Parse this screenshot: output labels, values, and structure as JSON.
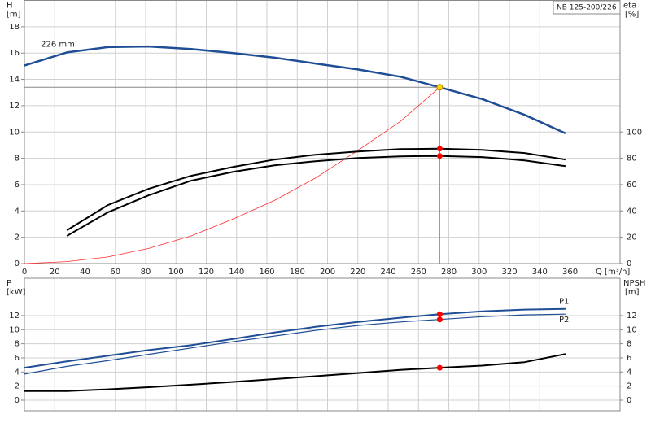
{
  "chart_data": [
    {
      "type": "line",
      "ylabel": "H",
      "yunit": "[m]",
      "y2label": "eta",
      "y2unit": "[%]",
      "xlabel": "Q [m³/h]",
      "label_box": "NB 125-200/226",
      "x": [
        0,
        28,
        55,
        82,
        110,
        138,
        165,
        192,
        220,
        248,
        274,
        302,
        330,
        357
      ],
      "xlim": [
        0,
        393
      ],
      "xticks": [
        0,
        20,
        40,
        60,
        80,
        100,
        120,
        140,
        160,
        180,
        200,
        220,
        240,
        260,
        280,
        300,
        320,
        340,
        360
      ],
      "ylim": [
        0,
        20
      ],
      "yticks": [
        0,
        2,
        4,
        6,
        8,
        10,
        12,
        14,
        16,
        18
      ],
      "y2lim": [
        0,
        200
      ],
      "y2ticks": [
        0,
        20,
        40,
        60,
        80,
        100
      ],
      "grid": true,
      "marker_x": 274,
      "crosshair": true,
      "series": [
        {
          "name": "226 mm",
          "color": "#1f4e96",
          "line_width": 2.5,
          "marker_color": "#ffd700",
          "crosshair": true,
          "values": [
            15.05,
            16.05,
            16.45,
            16.5,
            16.3,
            16.0,
            15.65,
            15.2,
            14.75,
            14.2,
            13.4,
            12.5,
            11.3,
            9.9
          ]
        },
        {
          "color": "#ff2a2a",
          "line_width": 0.8,
          "values": [
            0,
            0.15,
            0.5,
            1.15,
            2.1,
            3.4,
            4.8,
            6.5,
            8.6,
            10.8,
            13.4,
            null,
            null,
            null
          ]
        },
        {
          "color": "#000000",
          "line_width": 2,
          "axis": "y2",
          "marker_color": "#ff0000",
          "values": [
            null,
            25.3,
            44.4,
            56.8,
            66.7,
            73.5,
            79,
            82.7,
            85.2,
            87,
            87.3,
            86.4,
            84,
            79
          ]
        },
        {
          "color": "#000000",
          "line_width": 2,
          "axis": "y2",
          "marker_color": "#ff0000",
          "values": [
            null,
            21,
            38.9,
            51.9,
            63,
            69.8,
            74.7,
            77.8,
            80.2,
            81.5,
            81.8,
            80.9,
            78.4,
            74
          ]
        }
      ]
    },
    {
      "type": "line",
      "ylabel": "P",
      "yunit": "[kW]",
      "y2label": "NPSH",
      "y2unit": "[m]",
      "x": [
        0,
        28,
        55,
        82,
        110,
        138,
        165,
        192,
        220,
        248,
        274,
        302,
        330,
        357
      ],
      "xlim": [
        0,
        393
      ],
      "xticks": [
        0,
        20,
        40,
        60,
        80,
        100,
        120,
        140,
        160,
        180,
        200,
        220,
        240,
        260,
        280,
        300,
        320,
        340,
        360
      ],
      "show_xtick_labels": false,
      "ylim": [
        -1.5,
        17.3
      ],
      "yticks": [
        0,
        2,
        4,
        6,
        8,
        10,
        12
      ],
      "y2lim": [
        -1.5,
        17.3
      ],
      "y2ticks": [
        0,
        2,
        4,
        6,
        8,
        10,
        12
      ],
      "grid": true,
      "marker_x": 274,
      "series": [
        {
          "name": "P1",
          "color": "#1f4e96",
          "line_width": 2,
          "marker_color": "#ff0000",
          "label_position": "above",
          "values": [
            4.6,
            5.5,
            6.3,
            7.1,
            7.8,
            8.7,
            9.6,
            10.4,
            11.1,
            11.7,
            12.2,
            12.6,
            12.85,
            12.95
          ]
        },
        {
          "name": "P2",
          "color": "#1f4e96",
          "line_width": 1.2,
          "marker_color": "#ff0000",
          "label_position": "below",
          "values": [
            3.7,
            4.8,
            5.6,
            6.5,
            7.4,
            8.3,
            9.1,
            9.9,
            10.6,
            11.1,
            11.45,
            11.85,
            12.1,
            12.2
          ]
        },
        {
          "color": "#000000",
          "line_width": 2,
          "axis": "y2",
          "marker_color": "#ff0000",
          "values": [
            1.3,
            1.3,
            1.55,
            1.85,
            2.2,
            2.6,
            3.0,
            3.4,
            3.85,
            4.3,
            4.6,
            4.9,
            5.4,
            6.55
          ]
        }
      ]
    }
  ]
}
